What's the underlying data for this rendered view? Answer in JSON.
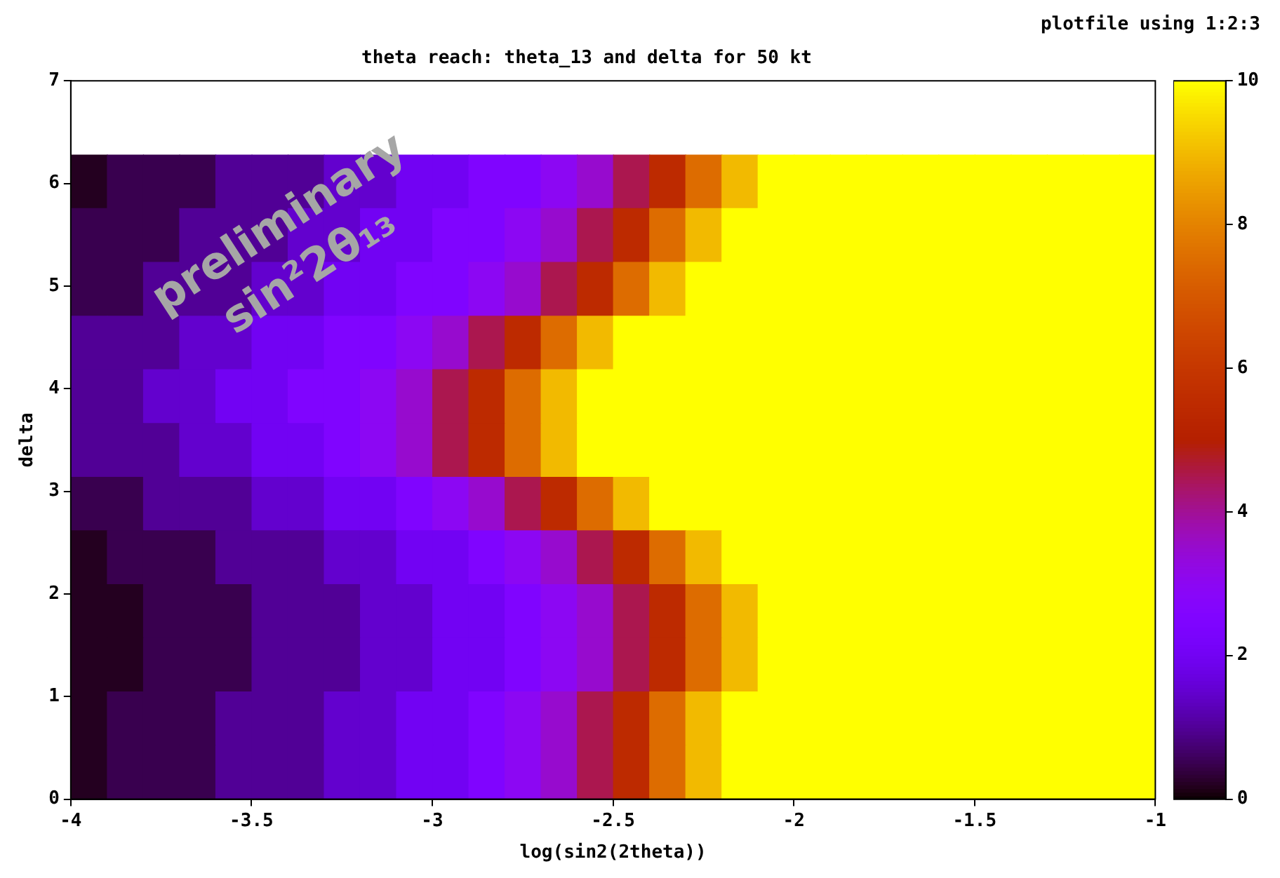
{
  "chart_data": {
    "type": "heatmap",
    "title": "theta reach: theta_13 and delta for 50 kt",
    "xlabel": "log(sin2(2theta))",
    "ylabel": "delta",
    "annotations": [
      "plotfile using 1:2:3",
      "preliminary",
      "sin²2θ₁₃"
    ],
    "x": [
      -3.95,
      -3.85,
      -3.75,
      -3.65,
      -3.55,
      -3.45,
      -3.35,
      -3.25,
      -3.15,
      -3.05,
      -2.95,
      -2.85,
      -2.75,
      -2.65,
      -2.55,
      -2.45,
      -2.35,
      -2.25,
      -2.15,
      -2.05,
      -1.95,
      -1.85,
      -1.75,
      -1.65,
      -1.55,
      -1.45,
      -1.35,
      -1.25,
      -1.15,
      -1.05
    ],
    "y": [
      6.02,
      5.5,
      4.97,
      4.45,
      3.93,
      3.4,
      2.88,
      2.36,
      1.83,
      1.31,
      0.79,
      0.26
    ],
    "cells": [
      [
        0.2,
        0.5,
        0.5,
        0.5,
        1,
        1,
        1,
        1.5,
        1.5,
        2,
        2,
        2.5,
        2.5,
        3,
        3.5,
        4.5,
        5.5,
        7.5,
        9,
        10,
        10,
        10,
        10,
        10,
        10,
        10,
        10,
        10,
        10,
        10
      ],
      [
        0.5,
        0.5,
        0.5,
        1,
        1,
        1,
        1.5,
        1.5,
        2,
        2,
        2.5,
        2.5,
        3,
        3.5,
        4.5,
        5.5,
        7.5,
        9,
        10,
        10,
        10,
        10,
        10,
        10,
        10,
        10,
        10,
        10,
        10,
        10
      ],
      [
        0.5,
        0.5,
        1,
        1,
        1,
        1.5,
        1.5,
        2,
        2,
        2.5,
        2.5,
        3,
        3.5,
        4.5,
        5.5,
        7.5,
        9,
        10,
        10,
        10,
        10,
        10,
        10,
        10,
        10,
        10,
        10,
        10,
        10,
        10
      ],
      [
        1,
        1,
        1,
        1.5,
        1.5,
        2,
        2,
        2.5,
        2.5,
        3,
        3.5,
        4.5,
        5.5,
        7.5,
        9,
        10,
        10,
        10,
        10,
        10,
        10,
        10,
        10,
        10,
        10,
        10,
        10,
        10,
        10,
        10
      ],
      [
        1,
        1,
        1.5,
        1.5,
        2,
        2,
        2.5,
        2.5,
        3,
        3.5,
        4.5,
        5.5,
        7.5,
        9,
        10,
        10,
        10,
        10,
        10,
        10,
        10,
        10,
        10,
        10,
        10,
        10,
        10,
        10,
        10,
        10
      ],
      [
        1,
        1,
        1,
        1.5,
        1.5,
        2,
        2,
        2.5,
        3,
        3.5,
        4.5,
        5.5,
        7.5,
        9,
        10,
        10,
        10,
        10,
        10,
        10,
        10,
        10,
        10,
        10,
        10,
        10,
        10,
        10,
        10,
        10
      ],
      [
        0.5,
        0.5,
        1,
        1,
        1,
        1.5,
        1.5,
        2,
        2,
        2.5,
        3,
        3.5,
        4.5,
        5.5,
        7.5,
        9,
        10,
        10,
        10,
        10,
        10,
        10,
        10,
        10,
        10,
        10,
        10,
        10,
        10,
        10
      ],
      [
        0.2,
        0.5,
        0.5,
        0.5,
        1,
        1,
        1,
        1.5,
        1.5,
        2,
        2,
        2.5,
        3,
        3.5,
        4.5,
        5.5,
        7.5,
        9,
        10,
        10,
        10,
        10,
        10,
        10,
        10,
        10,
        10,
        10,
        10,
        10
      ],
      [
        0.2,
        0.2,
        0.5,
        0.5,
        0.5,
        1,
        1,
        1,
        1.5,
        1.5,
        2,
        2,
        2.5,
        3,
        3.5,
        4.5,
        5.5,
        7.5,
        9,
        10,
        10,
        10,
        10,
        10,
        10,
        10,
        10,
        10,
        10,
        10
      ],
      [
        0.2,
        0.2,
        0.5,
        0.5,
        0.5,
        1,
        1,
        1,
        1.5,
        1.5,
        2,
        2,
        2.5,
        3,
        3.5,
        4.5,
        5.5,
        7.5,
        9,
        10,
        10,
        10,
        10,
        10,
        10,
        10,
        10,
        10,
        10,
        10
      ],
      [
        0.2,
        0.5,
        0.5,
        0.5,
        1,
        1,
        1,
        1.5,
        1.5,
        2,
        2,
        2.5,
        3,
        3.5,
        4.5,
        5.5,
        7.5,
        9,
        10,
        10,
        10,
        10,
        10,
        10,
        10,
        10,
        10,
        10,
        10,
        10
      ],
      [
        0.2,
        0.5,
        0.5,
        0.5,
        1,
        1,
        1,
        1.5,
        1.5,
        2,
        2,
        2.5,
        3,
        3.5,
        4.5,
        5.5,
        7.5,
        9,
        10,
        10,
        10,
        10,
        10,
        10,
        10,
        10,
        10,
        10,
        10,
        10
      ]
    ],
    "xlim": [
      -4,
      -1
    ],
    "xticks": [
      -4,
      -3.5,
      -3,
      -2.5,
      -2,
      -1.5,
      -1
    ],
    "ylim": [
      0,
      7
    ],
    "yticks": [
      0,
      1,
      2,
      3,
      4,
      5,
      6,
      7
    ],
    "clim": [
      0,
      10
    ],
    "cticks": [
      0,
      2,
      4,
      6,
      8,
      10
    ]
  }
}
